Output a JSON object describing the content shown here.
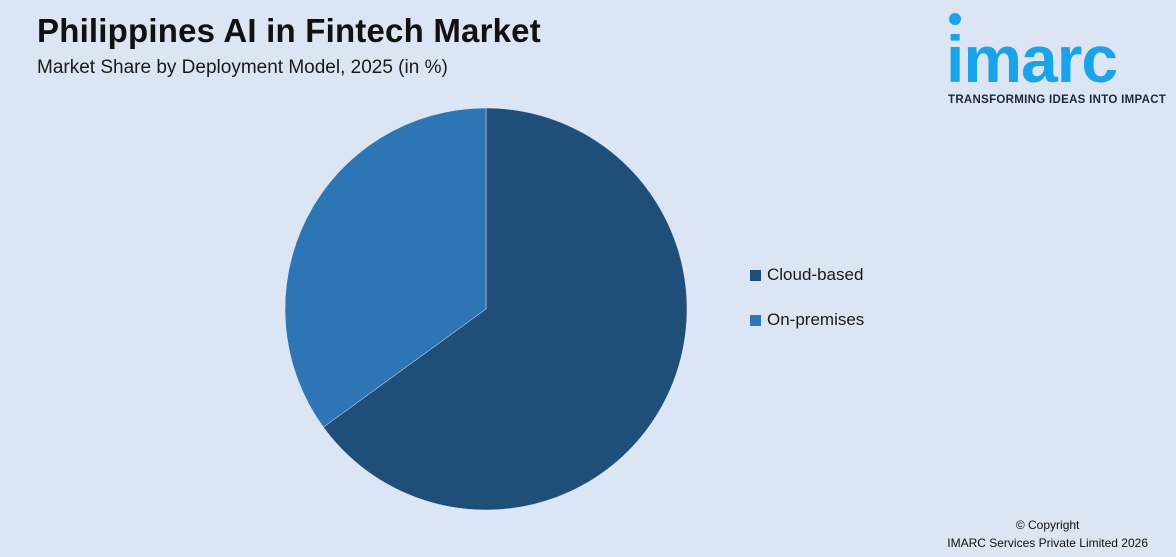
{
  "header": {
    "title": "Philippines AI in Fintech Market",
    "subtitle": "Market Share by Deployment Model, 2025 (in %)"
  },
  "logo": {
    "wordmark": "imarc",
    "tagline": "TRANSFORMING IDEAS INTO IMPACT"
  },
  "footer": {
    "copyright": "© Copyright",
    "company": "IMARC Services Private Limited 2026"
  },
  "colors": {
    "background": "#dce5f3",
    "cloud": "#1f4e79",
    "onprem": "#2e75b6",
    "logo": "#1aa3e8"
  },
  "chart_data": {
    "type": "pie",
    "title": "Philippines AI in Fintech Market",
    "subtitle": "Market Share by Deployment Model, 2025 (in %)",
    "legend_position": "right",
    "slices": [
      {
        "name": "Cloud-based",
        "value": 65,
        "color": "#1f4e79"
      },
      {
        "name": "On-premises",
        "value": 35,
        "color": "#2e75b6"
      }
    ]
  }
}
